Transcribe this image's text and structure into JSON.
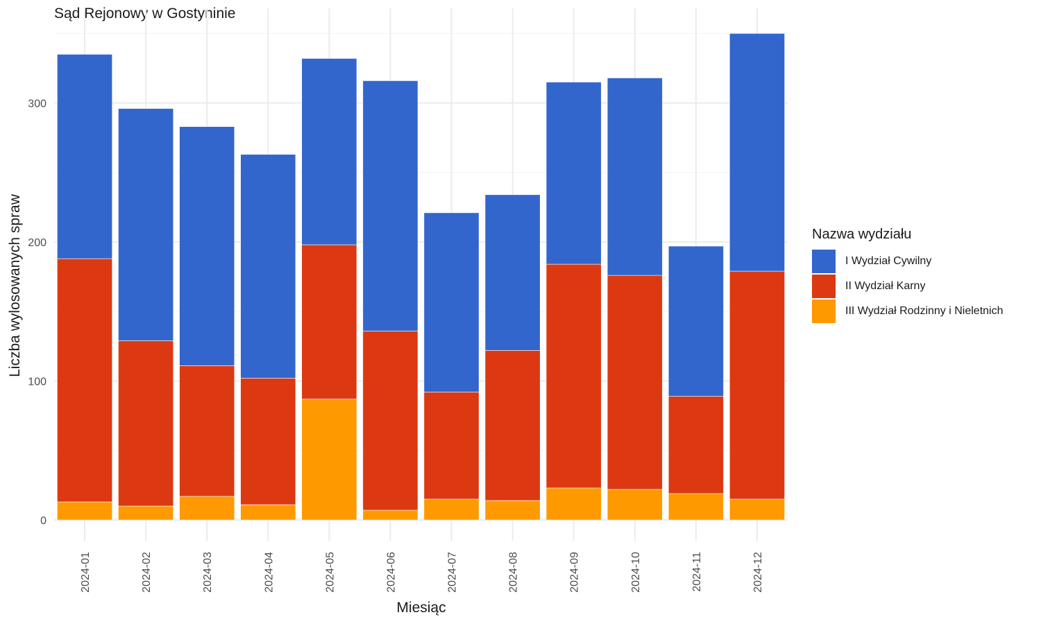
{
  "chart_data": {
    "type": "bar",
    "stacked": true,
    "title": "Sąd Rejonowy w Gostyninie",
    "xlabel": "Miesiąc",
    "ylabel": "Liczba wylosowanych spraw",
    "categories": [
      "2024-01",
      "2024-02",
      "2024-03",
      "2024-04",
      "2024-05",
      "2024-06",
      "2024-07",
      "2024-08",
      "2024-09",
      "2024-10",
      "2024-11",
      "2024-12"
    ],
    "yticks": [
      0,
      100,
      200,
      300
    ],
    "ylim": [
      0,
      350
    ],
    "grid": true,
    "legend_title": "Nazwa wydziału",
    "legend_position": "right",
    "series": [
      {
        "name": "III Wydział Rodzinny i Nieletnich",
        "color": "#FF9900",
        "values": [
          13,
          10,
          17,
          11,
          87,
          7,
          15,
          14,
          23,
          22,
          19,
          15
        ]
      },
      {
        "name": "II Wydział Karny",
        "color": "#DC3912",
        "values": [
          175,
          119,
          94,
          91,
          111,
          129,
          77,
          108,
          161,
          154,
          70,
          164
        ]
      },
      {
        "name": "I Wydział Cywilny",
        "color": "#3366CC",
        "values": [
          147,
          167,
          172,
          161,
          134,
          180,
          129,
          112,
          131,
          142,
          108,
          171
        ]
      }
    ],
    "legend_order": [
      "I Wydział Cywilny",
      "II Wydział Karny",
      "III Wydział Rodzinny i Nieletnich"
    ]
  }
}
